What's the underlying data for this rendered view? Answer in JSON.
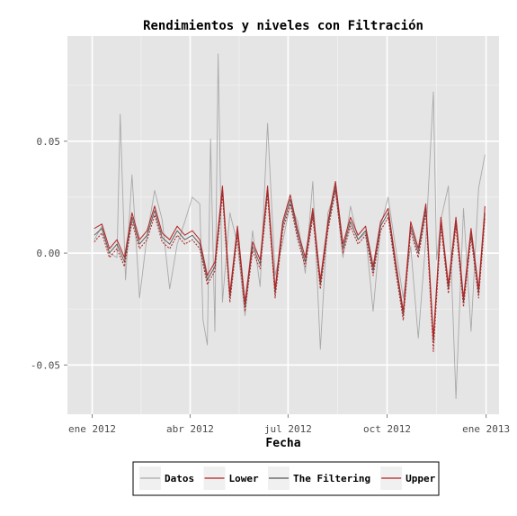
{
  "chart_data": {
    "type": "line",
    "title": "Rendimientos y niveles con Filtración",
    "xlabel": "Fecha",
    "ylabel": "",
    "x_tick_labels": [
      "ene 2012",
      "abr 2012",
      "jul 2012",
      "oct 2012",
      "ene 2013"
    ],
    "x_tick_dates": [
      "2012-01-01",
      "2012-04-01",
      "2012-07-01",
      "2012-10-01",
      "2013-01-01"
    ],
    "xlim": [
      "2011-12-09",
      "2013-01-13"
    ],
    "y_tick_labels": [
      "-0.05",
      "0.00",
      "0.05"
    ],
    "y_tick_values": [
      -0.05,
      0.0,
      0.05
    ],
    "ylim": [
      -0.072,
      0.097
    ],
    "grid": true,
    "legend_position": "bottom",
    "legend": [
      {
        "label": "Datos",
        "color": "#a9a9a9"
      },
      {
        "label": "Lower",
        "color": "#b22222"
      },
      {
        "label": "The Filtering",
        "color": "#555555"
      },
      {
        "label": "Upper",
        "color": "#b22222"
      }
    ],
    "series": [
      {
        "name": "Datos",
        "color": "#a9a9a9",
        "x": [
          "2012-01-03",
          "2012-01-10",
          "2012-01-17",
          "2012-01-24",
          "2012-01-27",
          "2012-02-01",
          "2012-02-07",
          "2012-02-14",
          "2012-02-21",
          "2012-02-28",
          "2012-03-06",
          "2012-03-13",
          "2012-03-20",
          "2012-03-27",
          "2012-04-03",
          "2012-04-10",
          "2012-04-13",
          "2012-04-17",
          "2012-04-20",
          "2012-04-24",
          "2012-04-27",
          "2012-05-01",
          "2012-05-08",
          "2012-05-15",
          "2012-05-22",
          "2012-05-29",
          "2012-06-05",
          "2012-06-12",
          "2012-06-19",
          "2012-06-26",
          "2012-07-03",
          "2012-07-10",
          "2012-07-17",
          "2012-07-24",
          "2012-07-31",
          "2012-08-07",
          "2012-08-14",
          "2012-08-21",
          "2012-08-28",
          "2012-09-04",
          "2012-09-11",
          "2012-09-18",
          "2012-09-25",
          "2012-10-02",
          "2012-10-09",
          "2012-10-16",
          "2012-10-23",
          "2012-10-30",
          "2012-11-06",
          "2012-11-13",
          "2012-11-16",
          "2012-11-20",
          "2012-11-27",
          "2012-12-04",
          "2012-12-11",
          "2012-12-18",
          "2012-12-25",
          "2012-12-31"
        ],
        "values": [
          0.006,
          0.012,
          0.0,
          -0.002,
          0.062,
          -0.012,
          0.035,
          -0.02,
          0.008,
          0.028,
          0.015,
          -0.016,
          0.004,
          0.014,
          0.025,
          0.022,
          -0.03,
          -0.041,
          0.051,
          -0.035,
          0.089,
          -0.022,
          0.018,
          0.004,
          -0.028,
          0.01,
          -0.015,
          0.058,
          -0.01,
          0.005,
          0.022,
          0.014,
          -0.009,
          0.032,
          -0.043,
          0.018,
          0.028,
          -0.002,
          0.021,
          0.006,
          0.009,
          -0.026,
          0.012,
          0.025,
          0.002,
          -0.02,
          0.003,
          -0.038,
          0.006,
          0.072,
          -0.003,
          0.015,
          0.03,
          -0.065,
          0.02,
          -0.035,
          0.029,
          0.044
        ]
      },
      {
        "name": "The Filtering",
        "color": "#555555",
        "x": [
          "2012-01-03",
          "2012-01-10",
          "2012-01-17",
          "2012-01-24",
          "2012-01-31",
          "2012-02-07",
          "2012-02-14",
          "2012-02-21",
          "2012-02-28",
          "2012-03-06",
          "2012-03-13",
          "2012-03-20",
          "2012-03-27",
          "2012-04-03",
          "2012-04-10",
          "2012-04-17",
          "2012-04-24",
          "2012-05-01",
          "2012-05-08",
          "2012-05-15",
          "2012-05-22",
          "2012-05-29",
          "2012-06-05",
          "2012-06-12",
          "2012-06-19",
          "2012-06-26",
          "2012-07-03",
          "2012-07-10",
          "2012-07-17",
          "2012-07-24",
          "2012-07-31",
          "2012-08-07",
          "2012-08-14",
          "2012-08-21",
          "2012-08-28",
          "2012-09-04",
          "2012-09-11",
          "2012-09-18",
          "2012-09-25",
          "2012-10-02",
          "2012-10-09",
          "2012-10-16",
          "2012-10-23",
          "2012-10-30",
          "2012-11-06",
          "2012-11-13",
          "2012-11-20",
          "2012-11-27",
          "2012-12-04",
          "2012-12-11",
          "2012-12-18",
          "2012-12-25",
          "2012-12-31"
        ],
        "values": [
          0.008,
          0.011,
          0.0,
          0.004,
          -0.004,
          0.016,
          0.004,
          0.008,
          0.019,
          0.007,
          0.004,
          0.01,
          0.006,
          0.008,
          0.004,
          -0.012,
          -0.006,
          0.028,
          -0.02,
          0.01,
          -0.024,
          0.003,
          -0.005,
          0.028,
          -0.018,
          0.012,
          0.024,
          0.008,
          -0.004,
          0.018,
          -0.014,
          0.012,
          0.03,
          0.002,
          0.014,
          0.006,
          0.01,
          -0.008,
          0.012,
          0.018,
          -0.006,
          -0.028,
          0.012,
          0.0,
          0.02,
          -0.04,
          0.014,
          -0.016,
          0.014,
          -0.022,
          0.009,
          -0.018,
          0.018
        ]
      },
      {
        "name": "Lower",
        "color": "#b22222",
        "x": [
          "2012-01-03",
          "2012-01-10",
          "2012-01-17",
          "2012-01-24",
          "2012-01-31",
          "2012-02-07",
          "2012-02-14",
          "2012-02-21",
          "2012-02-28",
          "2012-03-06",
          "2012-03-13",
          "2012-03-20",
          "2012-03-27",
          "2012-04-03",
          "2012-04-10",
          "2012-04-17",
          "2012-04-24",
          "2012-05-01",
          "2012-05-08",
          "2012-05-15",
          "2012-05-22",
          "2012-05-29",
          "2012-06-05",
          "2012-06-12",
          "2012-06-19",
          "2012-06-26",
          "2012-07-03",
          "2012-07-10",
          "2012-07-17",
          "2012-07-24",
          "2012-07-31",
          "2012-08-07",
          "2012-08-14",
          "2012-08-21",
          "2012-08-28",
          "2012-09-04",
          "2012-09-11",
          "2012-09-18",
          "2012-09-25",
          "2012-10-02",
          "2012-10-09",
          "2012-10-16",
          "2012-10-23",
          "2012-10-30",
          "2012-11-06",
          "2012-11-13",
          "2012-11-20",
          "2012-11-27",
          "2012-12-04",
          "2012-12-11",
          "2012-12-18",
          "2012-12-25",
          "2012-12-31"
        ],
        "values": [
          0.005,
          0.009,
          -0.002,
          0.002,
          -0.006,
          0.014,
          0.002,
          0.006,
          0.017,
          0.005,
          0.002,
          0.008,
          0.004,
          0.006,
          0.002,
          -0.014,
          -0.008,
          0.026,
          -0.022,
          0.008,
          -0.026,
          0.001,
          -0.007,
          0.026,
          -0.02,
          0.01,
          0.022,
          0.006,
          -0.006,
          0.016,
          -0.016,
          0.01,
          0.028,
          0.0,
          0.012,
          0.004,
          0.008,
          -0.01,
          0.01,
          0.016,
          -0.008,
          -0.03,
          0.01,
          -0.002,
          0.018,
          -0.044,
          0.012,
          -0.018,
          0.012,
          -0.024,
          0.007,
          -0.02,
          0.016
        ]
      },
      {
        "name": "Upper",
        "color": "#b22222",
        "x": [
          "2012-01-03",
          "2012-01-10",
          "2012-01-17",
          "2012-01-24",
          "2012-01-31",
          "2012-02-07",
          "2012-02-14",
          "2012-02-21",
          "2012-02-28",
          "2012-03-06",
          "2012-03-13",
          "2012-03-20",
          "2012-03-27",
          "2012-04-03",
          "2012-04-10",
          "2012-04-17",
          "2012-04-24",
          "2012-05-01",
          "2012-05-08",
          "2012-05-15",
          "2012-05-22",
          "2012-05-29",
          "2012-06-05",
          "2012-06-12",
          "2012-06-19",
          "2012-06-26",
          "2012-07-03",
          "2012-07-10",
          "2012-07-17",
          "2012-07-24",
          "2012-07-31",
          "2012-08-07",
          "2012-08-14",
          "2012-08-21",
          "2012-08-28",
          "2012-09-04",
          "2012-09-11",
          "2012-09-18",
          "2012-09-25",
          "2012-10-02",
          "2012-10-09",
          "2012-10-16",
          "2012-10-23",
          "2012-10-30",
          "2012-11-06",
          "2012-11-13",
          "2012-11-20",
          "2012-11-27",
          "2012-12-04",
          "2012-12-11",
          "2012-12-18",
          "2012-12-25",
          "2012-12-31"
        ],
        "values": [
          0.011,
          0.013,
          0.002,
          0.006,
          -0.002,
          0.018,
          0.006,
          0.01,
          0.021,
          0.009,
          0.006,
          0.012,
          0.008,
          0.01,
          0.006,
          -0.01,
          -0.004,
          0.03,
          -0.018,
          0.012,
          -0.022,
          0.005,
          -0.003,
          0.03,
          -0.016,
          0.014,
          0.026,
          0.01,
          -0.002,
          0.02,
          -0.012,
          0.014,
          0.032,
          0.004,
          0.016,
          0.008,
          0.012,
          -0.006,
          0.014,
          0.02,
          -0.004,
          -0.026,
          0.014,
          0.002,
          0.022,
          -0.038,
          0.016,
          -0.014,
          0.016,
          -0.02,
          0.011,
          -0.016,
          0.021
        ]
      }
    ]
  }
}
